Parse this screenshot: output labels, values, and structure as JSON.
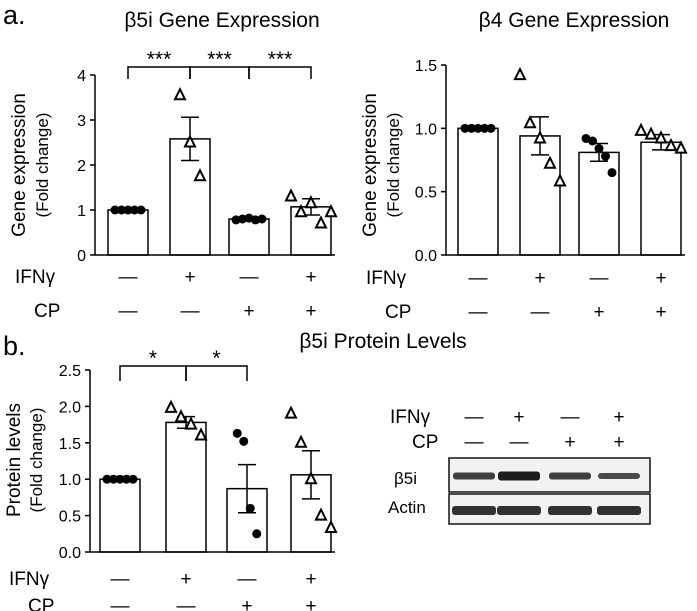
{
  "panels": {
    "a": "a.",
    "b": "b."
  },
  "conditions": {
    "ifn_label": "IFNγ",
    "cp_label": "CP",
    "ifn_signs": [
      "—",
      "+",
      "—",
      "+"
    ],
    "cp_signs": [
      "—",
      "—",
      "+",
      "+"
    ]
  },
  "blot": {
    "ifn_label": "IFNγ",
    "cp_label": "CP",
    "ifn_signs": [
      "—",
      "+",
      "—",
      "+"
    ],
    "cp_signs": [
      "—",
      "—",
      "+",
      "+"
    ],
    "rows": [
      "β5i",
      "Actin"
    ]
  },
  "chart_data": [
    {
      "type": "bar",
      "title": "β5i Gene Expression",
      "ylabel": "Gene expression",
      "ylabel_sub": "(Fold change)",
      "ylim": [
        0,
        4
      ],
      "yticks": [
        0,
        1,
        2,
        3,
        4
      ],
      "ytick_labels": [
        "0",
        "1",
        "2",
        "3",
        "4"
      ],
      "categories": [
        "— / —",
        "+ / —",
        "— / +",
        "+ / +"
      ],
      "values": [
        1.0,
        2.58,
        0.8,
        1.07
      ],
      "sem": [
        0.0,
        0.48,
        0.04,
        0.18
      ],
      "point_markers": [
        "circle",
        "triangle",
        "circle",
        "triangle"
      ],
      "points": [
        [
          1.0,
          1.0,
          1.0,
          1.0,
          1.0
        ],
        [
          3.55,
          2.5,
          1.75
        ],
        [
          0.78,
          0.8,
          0.82,
          0.78,
          0.8
        ],
        [
          1.3,
          0.95,
          1.15,
          0.7,
          0.95
        ]
      ],
      "significance": [
        {
          "from": 0,
          "to": 1,
          "label": "***"
        },
        {
          "from": 1,
          "to": 2,
          "label": "***"
        },
        {
          "from": 2,
          "to": 3,
          "label": "***"
        }
      ]
    },
    {
      "type": "bar",
      "title": "β4 Gene Expression",
      "ylabel": "Gene expression",
      "ylabel_sub": "(Fold change)",
      "ylim": [
        0,
        1.5
      ],
      "yticks": [
        0,
        0.5,
        1.0,
        1.5
      ],
      "ytick_labels": [
        "0.0",
        "0.5",
        "1.0",
        "1.5"
      ],
      "categories": [
        "— / —",
        "+ / —",
        "— / +",
        "+ / +"
      ],
      "values": [
        1.0,
        0.94,
        0.81,
        0.89
      ],
      "sem": [
        0.0,
        0.15,
        0.07,
        0.06
      ],
      "point_markers": [
        "circle",
        "triangle",
        "circle",
        "triangle"
      ],
      "points": [
        [
          1.0,
          1.0,
          1.0,
          1.0,
          1.0
        ],
        [
          1.42,
          1.04,
          0.92,
          0.72,
          0.58
        ],
        [
          0.92,
          0.9,
          0.84,
          0.78,
          0.65
        ],
        [
          0.98,
          0.95,
          0.92,
          0.86,
          0.84
        ]
      ],
      "significance": []
    },
    {
      "type": "bar",
      "title": "β5i Protein Levels",
      "ylabel": "Protein levels",
      "ylabel_sub": "(Fold change)",
      "ylim": [
        0,
        2.5
      ],
      "yticks": [
        0,
        0.5,
        1.0,
        1.5,
        2.0,
        2.5
      ],
      "ytick_labels": [
        "0.0",
        "0.5",
        "1.0",
        "1.5",
        "2.0",
        "2.5"
      ],
      "categories": [
        "— / —",
        "+ / —",
        "— / +",
        "+ / +"
      ],
      "values": [
        1.0,
        1.78,
        0.87,
        1.06
      ],
      "sem": [
        0.0,
        0.08,
        0.33,
        0.33
      ],
      "point_markers": [
        "circle",
        "triangle",
        "circle",
        "triangle"
      ],
      "points": [
        [
          1.0,
          1.0,
          1.0,
          1.0,
          1.0
        ],
        [
          1.98,
          1.85,
          1.75,
          1.6
        ],
        [
          1.63,
          1.52,
          0.6,
          0.25
        ],
        [
          1.9,
          1.5,
          1.0,
          0.5,
          0.33
        ]
      ],
      "significance": [
        {
          "from": 0,
          "to": 1,
          "label": "*"
        },
        {
          "from": 1,
          "to": 2,
          "label": "*"
        }
      ]
    }
  ]
}
